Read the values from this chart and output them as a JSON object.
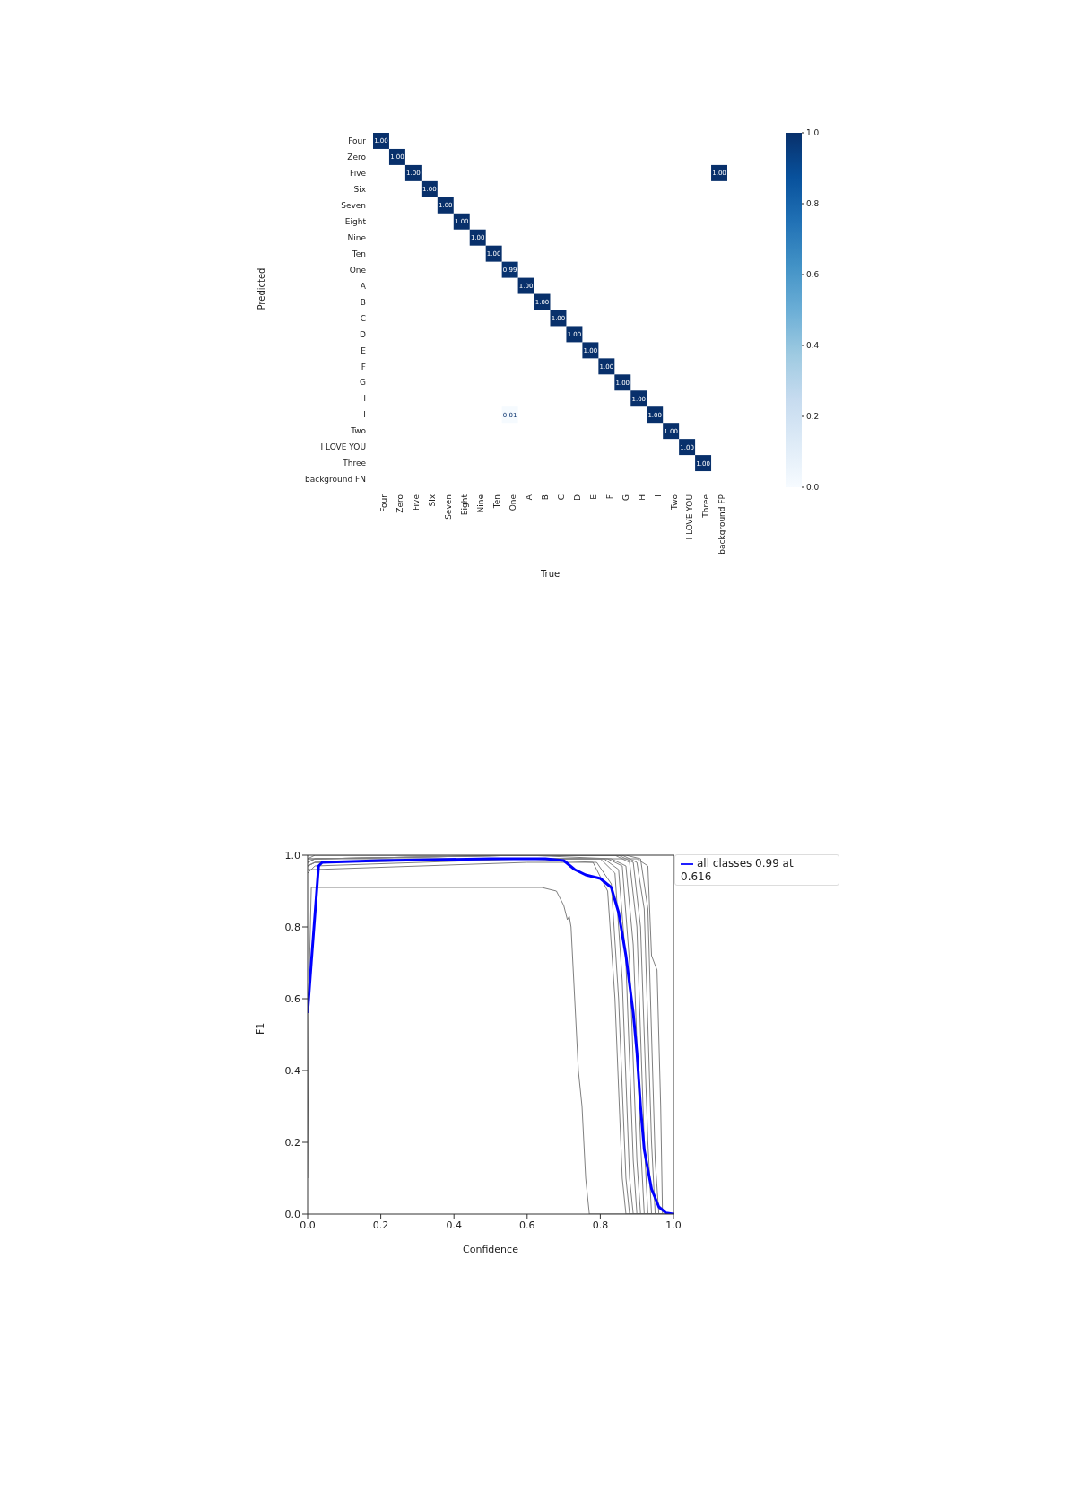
{
  "chart_data": [
    {
      "type": "heatmap",
      "xlabel": "True",
      "ylabel": "Predicted",
      "categories": [
        "Four",
        "Zero",
        "Five",
        "Six",
        "Seven",
        "Eight",
        "Nine",
        "Ten",
        "One",
        "A",
        "B",
        "C",
        "D",
        "E",
        "F",
        "G",
        "H",
        "I",
        "Two",
        "I LOVE YOU",
        "Three",
        "background FP"
      ],
      "y_categories": [
        "Four",
        "Zero",
        "Five",
        "Six",
        "Seven",
        "Eight",
        "Nine",
        "Ten",
        "One",
        "A",
        "B",
        "C",
        "D",
        "E",
        "F",
        "G",
        "H",
        "I",
        "Two",
        "I LOVE YOU",
        "Three",
        "background FN"
      ],
      "cells": [
        [
          1,
          null,
          null,
          null,
          null,
          null,
          null,
          null,
          null,
          null,
          null,
          null,
          null,
          null,
          null,
          null,
          null,
          null,
          null,
          null,
          null,
          null
        ],
        [
          null,
          1,
          null,
          null,
          null,
          null,
          null,
          null,
          null,
          null,
          null,
          null,
          null,
          null,
          null,
          null,
          null,
          null,
          null,
          null,
          null,
          null
        ],
        [
          null,
          null,
          1,
          null,
          null,
          null,
          null,
          null,
          null,
          null,
          null,
          null,
          null,
          null,
          null,
          null,
          null,
          null,
          null,
          null,
          null,
          1
        ],
        [
          null,
          null,
          null,
          1,
          null,
          null,
          null,
          null,
          null,
          null,
          null,
          null,
          null,
          null,
          null,
          null,
          null,
          null,
          null,
          null,
          null,
          null
        ],
        [
          null,
          null,
          null,
          null,
          1,
          null,
          null,
          null,
          null,
          null,
          null,
          null,
          null,
          null,
          null,
          null,
          null,
          null,
          null,
          null,
          null,
          null
        ],
        [
          null,
          null,
          null,
          null,
          null,
          1,
          null,
          null,
          null,
          null,
          null,
          null,
          null,
          null,
          null,
          null,
          null,
          null,
          null,
          null,
          null,
          null
        ],
        [
          null,
          null,
          null,
          null,
          null,
          null,
          1,
          null,
          null,
          null,
          null,
          null,
          null,
          null,
          null,
          null,
          null,
          null,
          null,
          null,
          null,
          null
        ],
        [
          null,
          null,
          null,
          null,
          null,
          null,
          null,
          1,
          null,
          null,
          null,
          null,
          null,
          null,
          null,
          null,
          null,
          null,
          null,
          null,
          null,
          null
        ],
        [
          null,
          null,
          null,
          null,
          null,
          null,
          null,
          null,
          0.99,
          null,
          null,
          null,
          null,
          null,
          null,
          null,
          null,
          null,
          null,
          null,
          null,
          null
        ],
        [
          null,
          null,
          null,
          null,
          null,
          null,
          null,
          null,
          null,
          1,
          null,
          null,
          null,
          null,
          null,
          null,
          null,
          null,
          null,
          null,
          null,
          null
        ],
        [
          null,
          null,
          null,
          null,
          null,
          null,
          null,
          null,
          null,
          null,
          1,
          null,
          null,
          null,
          null,
          null,
          null,
          null,
          null,
          null,
          null,
          null
        ],
        [
          null,
          null,
          null,
          null,
          null,
          null,
          null,
          null,
          null,
          null,
          null,
          1,
          null,
          null,
          null,
          null,
          null,
          null,
          null,
          null,
          null,
          null
        ],
        [
          null,
          null,
          null,
          null,
          null,
          null,
          null,
          null,
          null,
          null,
          null,
          null,
          1,
          null,
          null,
          null,
          null,
          null,
          null,
          null,
          null,
          null
        ],
        [
          null,
          null,
          null,
          null,
          null,
          null,
          null,
          null,
          null,
          null,
          null,
          null,
          null,
          1,
          null,
          null,
          null,
          null,
          null,
          null,
          null,
          null
        ],
        [
          null,
          null,
          null,
          null,
          null,
          null,
          null,
          null,
          null,
          null,
          null,
          null,
          null,
          null,
          1,
          null,
          null,
          null,
          null,
          null,
          null,
          null
        ],
        [
          null,
          null,
          null,
          null,
          null,
          null,
          null,
          null,
          null,
          null,
          null,
          null,
          null,
          null,
          null,
          1,
          null,
          null,
          null,
          null,
          null,
          null
        ],
        [
          null,
          null,
          null,
          null,
          null,
          null,
          null,
          null,
          null,
          null,
          null,
          null,
          null,
          null,
          null,
          null,
          1,
          null,
          null,
          null,
          null,
          null
        ],
        [
          null,
          null,
          null,
          null,
          null,
          null,
          null,
          null,
          0.01,
          null,
          null,
          null,
          null,
          null,
          null,
          null,
          null,
          1,
          null,
          null,
          null,
          null
        ],
        [
          null,
          null,
          null,
          null,
          null,
          null,
          null,
          null,
          null,
          null,
          null,
          null,
          null,
          null,
          null,
          null,
          null,
          null,
          1,
          null,
          null,
          null
        ],
        [
          null,
          null,
          null,
          null,
          null,
          null,
          null,
          null,
          null,
          null,
          null,
          null,
          null,
          null,
          null,
          null,
          null,
          null,
          null,
          1,
          null,
          null
        ],
        [
          null,
          null,
          null,
          null,
          null,
          null,
          null,
          null,
          null,
          null,
          null,
          null,
          null,
          null,
          null,
          null,
          null,
          null,
          null,
          null,
          1,
          null
        ],
        [
          null,
          null,
          null,
          null,
          null,
          null,
          null,
          null,
          null,
          null,
          null,
          null,
          null,
          null,
          null,
          null,
          null,
          null,
          null,
          null,
          null,
          null
        ]
      ],
      "cell_labels": [
        [
          "1.00",
          null,
          null,
          null,
          null,
          null,
          null,
          null,
          null,
          null,
          null,
          null,
          null,
          null,
          null,
          null,
          null,
          null,
          null,
          null,
          null,
          null
        ],
        [
          null,
          "1.00",
          null,
          null,
          null,
          null,
          null,
          null,
          null,
          null,
          null,
          null,
          null,
          null,
          null,
          null,
          null,
          null,
          null,
          null,
          null,
          null
        ],
        [
          null,
          null,
          "1.00",
          null,
          null,
          null,
          null,
          null,
          null,
          null,
          null,
          null,
          null,
          null,
          null,
          null,
          null,
          null,
          null,
          null,
          null,
          "1.00"
        ],
        [
          null,
          null,
          null,
          "1.00",
          null,
          null,
          null,
          null,
          null,
          null,
          null,
          null,
          null,
          null,
          null,
          null,
          null,
          null,
          null,
          null,
          null,
          null
        ],
        [
          null,
          null,
          null,
          null,
          "1.00",
          null,
          null,
          null,
          null,
          null,
          null,
          null,
          null,
          null,
          null,
          null,
          null,
          null,
          null,
          null,
          null,
          null
        ],
        [
          null,
          null,
          null,
          null,
          null,
          "1.00",
          null,
          null,
          null,
          null,
          null,
          null,
          null,
          null,
          null,
          null,
          null,
          null,
          null,
          null,
          null,
          null
        ],
        [
          null,
          null,
          null,
          null,
          null,
          null,
          "1.00",
          null,
          null,
          null,
          null,
          null,
          null,
          null,
          null,
          null,
          null,
          null,
          null,
          null,
          null,
          null
        ],
        [
          null,
          null,
          null,
          null,
          null,
          null,
          null,
          "1.00",
          null,
          null,
          null,
          null,
          null,
          null,
          null,
          null,
          null,
          null,
          null,
          null,
          null,
          null
        ],
        [
          null,
          null,
          null,
          null,
          null,
          null,
          null,
          null,
          "0.99",
          null,
          null,
          null,
          null,
          null,
          null,
          null,
          null,
          null,
          null,
          null,
          null,
          null
        ],
        [
          null,
          null,
          null,
          null,
          null,
          null,
          null,
          null,
          null,
          "1.00",
          null,
          null,
          null,
          null,
          null,
          null,
          null,
          null,
          null,
          null,
          null,
          null
        ],
        [
          null,
          null,
          null,
          null,
          null,
          null,
          null,
          null,
          null,
          null,
          "1.00",
          null,
          null,
          null,
          null,
          null,
          null,
          null,
          null,
          null,
          null,
          null
        ],
        [
          null,
          null,
          null,
          null,
          null,
          null,
          null,
          null,
          null,
          null,
          null,
          "1.00",
          null,
          null,
          null,
          null,
          null,
          null,
          null,
          null,
          null,
          null
        ],
        [
          null,
          null,
          null,
          null,
          null,
          null,
          null,
          null,
          null,
          null,
          null,
          null,
          "1.00",
          null,
          null,
          null,
          null,
          null,
          null,
          null,
          null,
          null
        ],
        [
          null,
          null,
          null,
          null,
          null,
          null,
          null,
          null,
          null,
          null,
          null,
          null,
          null,
          "1.00",
          null,
          null,
          null,
          null,
          null,
          null,
          null,
          null
        ],
        [
          null,
          null,
          null,
          null,
          null,
          null,
          null,
          null,
          null,
          null,
          null,
          null,
          null,
          null,
          "1.00",
          null,
          null,
          null,
          null,
          null,
          null,
          null
        ],
        [
          null,
          null,
          null,
          null,
          null,
          null,
          null,
          null,
          null,
          null,
          null,
          null,
          null,
          null,
          null,
          "1.00",
          null,
          null,
          null,
          null,
          null,
          null
        ],
        [
          null,
          null,
          null,
          null,
          null,
          null,
          null,
          null,
          null,
          null,
          null,
          null,
          null,
          null,
          null,
          null,
          "1.00",
          null,
          null,
          null,
          null,
          null
        ],
        [
          null,
          null,
          null,
          null,
          null,
          null,
          null,
          null,
          "0.01",
          null,
          null,
          null,
          null,
          null,
          null,
          null,
          null,
          "1.00",
          null,
          null,
          null,
          null
        ],
        [
          null,
          null,
          null,
          null,
          null,
          null,
          null,
          null,
          null,
          null,
          null,
          null,
          null,
          null,
          null,
          null,
          null,
          null,
          "1.00",
          null,
          null,
          null
        ],
        [
          null,
          null,
          null,
          null,
          null,
          null,
          null,
          null,
          null,
          null,
          null,
          null,
          null,
          null,
          null,
          null,
          null,
          null,
          null,
          "1.00",
          null,
          null
        ],
        [
          null,
          null,
          null,
          null,
          null,
          null,
          null,
          null,
          null,
          null,
          null,
          null,
          null,
          null,
          null,
          null,
          null,
          null,
          null,
          null,
          "1.00",
          null
        ],
        [
          null,
          null,
          null,
          null,
          null,
          null,
          null,
          null,
          null,
          null,
          null,
          null,
          null,
          null,
          null,
          null,
          null,
          null,
          null,
          null,
          null,
          null
        ]
      ],
      "clim": [
        0,
        1
      ],
      "cticks": [
        {
          "value": 0,
          "label": "0.0"
        },
        {
          "value": 0.2,
          "label": "0.2"
        },
        {
          "value": 0.4,
          "label": "0.4"
        },
        {
          "value": 0.6,
          "label": "0.6"
        },
        {
          "value": 0.8,
          "label": "0.8"
        },
        {
          "value": 1,
          "label": "1.0"
        }
      ]
    },
    {
      "type": "line",
      "xlabel": "Confidence",
      "ylabel": "F1",
      "legend": "right",
      "grid": false,
      "marker": "none",
      "line_style": "solid",
      "xlim": [
        0,
        1
      ],
      "ylim": [
        0,
        1
      ],
      "xticks": [
        {
          "value": 0,
          "label": "0.0"
        },
        {
          "value": 0.2,
          "label": "0.2"
        },
        {
          "value": 0.4,
          "label": "0.4"
        },
        {
          "value": 0.6,
          "label": "0.6"
        },
        {
          "value": 0.8,
          "label": "0.8"
        },
        {
          "value": 1,
          "label": "1.0"
        }
      ],
      "yticks": [
        {
          "value": 0,
          "label": "0.0"
        },
        {
          "value": 0.2,
          "label": "0.2"
        },
        {
          "value": 0.4,
          "label": "0.4"
        },
        {
          "value": 0.6,
          "label": "0.6"
        },
        {
          "value": 0.8,
          "label": "0.8"
        },
        {
          "value": 1,
          "label": "1.0"
        }
      ],
      "series": [
        {
          "color": "#808080",
          "x": [
            0,
            0.003,
            0.01,
            0.64,
            0.68,
            0.7,
            0.71,
            0.715,
            0.72,
            0.73,
            0.74,
            0.75,
            0.76,
            0.77,
            1
          ],
          "values": [
            0.1,
            0.6,
            0.91,
            0.91,
            0.9,
            0.86,
            0.82,
            0.83,
            0.8,
            0.6,
            0.4,
            0.3,
            0.1,
            0,
            0
          ]
        },
        {
          "color": "#808080",
          "x": [
            0,
            0.02,
            0.6,
            0.78,
            0.82,
            0.84,
            0.86,
            0.87,
            1
          ],
          "values": [
            0.95,
            0.97,
            0.99,
            0.98,
            0.9,
            0.6,
            0.1,
            0,
            0
          ]
        },
        {
          "color": "#808080",
          "x": [
            0,
            0.02,
            0.6,
            0.79,
            0.83,
            0.85,
            0.87,
            0.88,
            1
          ],
          "values": [
            0.96,
            0.96,
            0.98,
            0.98,
            0.92,
            0.6,
            0.1,
            0,
            0
          ]
        },
        {
          "color": "#808080",
          "x": [
            0,
            0.02,
            0.6,
            0.8,
            0.84,
            0.86,
            0.88,
            0.89,
            1
          ],
          "values": [
            0.97,
            0.98,
            0.99,
            0.99,
            0.95,
            0.65,
            0.1,
            0,
            0
          ]
        },
        {
          "color": "#808080",
          "x": [
            0,
            0.02,
            0.6,
            0.81,
            0.85,
            0.87,
            0.89,
            0.9,
            1
          ],
          "values": [
            0.98,
            0.99,
            0.99,
            0.99,
            0.96,
            0.7,
            0.15,
            0,
            0
          ]
        },
        {
          "color": "#808080",
          "x": [
            0,
            0.02,
            0.6,
            0.82,
            0.86,
            0.88,
            0.9,
            0.91,
            1
          ],
          "values": [
            0.97,
            0.98,
            0.99,
            0.99,
            0.97,
            0.7,
            0.15,
            0,
            0
          ]
        },
        {
          "color": "#808080",
          "x": [
            0,
            0.02,
            0.6,
            0.83,
            0.87,
            0.89,
            0.91,
            0.92,
            1
          ],
          "values": [
            0.98,
            0.99,
            1,
            0.99,
            0.97,
            0.75,
            0.2,
            0,
            0
          ]
        },
        {
          "color": "#808080",
          "x": [
            0,
            0.02,
            0.6,
            0.84,
            0.88,
            0.9,
            0.92,
            0.93,
            1
          ],
          "values": [
            0.99,
            0.99,
            1,
            1,
            0.98,
            0.8,
            0.2,
            0,
            0
          ]
        },
        {
          "color": "#808080",
          "x": [
            0,
            0.02,
            0.6,
            0.85,
            0.89,
            0.91,
            0.93,
            0.94,
            1
          ],
          "values": [
            0.98,
            0.99,
            1,
            1,
            0.98,
            0.8,
            0.2,
            0,
            0
          ]
        },
        {
          "color": "#808080",
          "x": [
            0,
            0.02,
            0.6,
            0.86,
            0.9,
            0.92,
            0.94,
            0.95,
            1
          ],
          "values": [
            0.99,
            0.99,
            1,
            1,
            0.98,
            0.85,
            0.2,
            0,
            0
          ]
        },
        {
          "color": "#808080",
          "x": [
            0,
            0.02,
            0.6,
            0.87,
            0.91,
            0.93,
            0.95,
            0.96,
            1
          ],
          "values": [
            0.99,
            1,
            1,
            1,
            0.99,
            0.85,
            0.15,
            0,
            0
          ]
        },
        {
          "color": "#808080",
          "x": [
            0,
            0.02,
            0.6,
            0.9,
            0.93,
            0.94,
            0.955,
            0.965,
            0.97,
            1
          ],
          "values": [
            0.97,
            0.98,
            0.99,
            0.99,
            0.97,
            0.72,
            0.68,
            0.3,
            0,
            0
          ]
        },
        {
          "name": "all classes 0.99 at 0.616",
          "color": "#0000ff",
          "x": [
            0,
            0.01,
            0.03,
            0.04,
            0.2,
            0.5,
            0.65,
            0.7,
            0.73,
            0.76,
            0.8,
            0.83,
            0.85,
            0.87,
            0.89,
            0.9,
            0.91,
            0.92,
            0.94,
            0.96,
            0.98,
            1
          ],
          "values": [
            0.56,
            0.7,
            0.97,
            0.98,
            0.985,
            0.99,
            0.99,
            0.985,
            0.96,
            0.945,
            0.935,
            0.91,
            0.84,
            0.72,
            0.56,
            0.45,
            0.3,
            0.18,
            0.07,
            0.02,
            0.003,
            0
          ]
        }
      ]
    }
  ]
}
